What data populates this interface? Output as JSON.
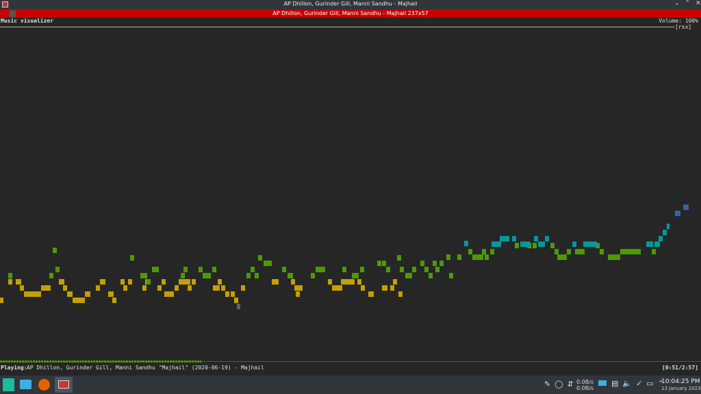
{
  "window": {
    "title": "AP Dhillon, Gurinder Gill, Manni Sandhu - Majhail",
    "tab_title": "AP Dhillon, Gurinder Gill, Manni Sandhu - Majhail 237x57"
  },
  "terminal": {
    "screen_title": "Music visualizer",
    "volume": "Volume: 100%",
    "visualizer_type": "[rsx]",
    "status_label": "Playing:",
    "now_playing": "AP Dhillon, Gurinder Gill, Manni Sandhu \"Majhail\" (2020-06-19) - Majhail",
    "time": "[0:51/2:57]"
  },
  "taskbar": {
    "net_up": "0.0B/s",
    "net_down": "0.0B/s",
    "clock_time": "10:04:25 PM",
    "clock_date": "13 January 2023"
  }
}
